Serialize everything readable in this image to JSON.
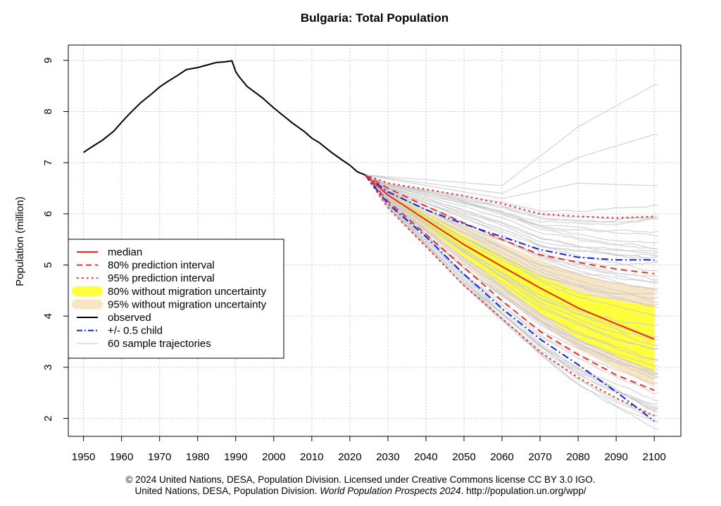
{
  "chart_data": {
    "type": "line",
    "title": "Bulgaria: Total Population",
    "xlabel": "",
    "ylabel": "Population (million)",
    "xlim": [
      1946,
      2107
    ],
    "ylim": [
      1.65,
      9.3
    ],
    "x_ticks": [
      1950,
      1960,
      1970,
      1980,
      1990,
      2000,
      2010,
      2020,
      2030,
      2040,
      2050,
      2060,
      2070,
      2080,
      2090,
      2100
    ],
    "y_ticks": [
      2,
      3,
      4,
      5,
      6,
      7,
      8,
      9
    ],
    "grid": true,
    "legend_position": "left",
    "legend": [
      {
        "label": "median",
        "key": "median"
      },
      {
        "label": "80% prediction interval",
        "key": "pi80"
      },
      {
        "label": "95% prediction interval",
        "key": "pi95"
      },
      {
        "label": "80% without migration uncertainty",
        "key": "band80"
      },
      {
        "label": "95% without migration uncertainty",
        "key": "band95"
      },
      {
        "label": "observed",
        "key": "observed"
      },
      {
        "label": "+/- 0.5 child",
        "key": "child"
      },
      {
        "label": "60 sample trajectories",
        "key": "trajectories"
      }
    ],
    "colors": {
      "median": "#e8322b",
      "pi80": "#e8322b",
      "pi95": "#e8322b",
      "band80": "#ffff3c",
      "band95": "#f8e5c4",
      "observed": "#000000",
      "child": "#1020e0",
      "trajectories": "#cccccc"
    },
    "observed": {
      "x": [
        1950,
        1952,
        1955,
        1958,
        1960,
        1962,
        1965,
        1968,
        1970,
        1972,
        1975,
        1977,
        1980,
        1983,
        1985,
        1987,
        1989,
        1990,
        1991,
        1993,
        1995,
        1997,
        2000,
        2002,
        2005,
        2008,
        2010,
        2012,
        2015,
        2018,
        2020,
        2022,
        2024
      ],
      "y": [
        7.2,
        7.3,
        7.44,
        7.62,
        7.79,
        7.95,
        8.17,
        8.35,
        8.48,
        8.58,
        8.72,
        8.82,
        8.86,
        8.92,
        8.96,
        8.97,
        8.99,
        8.78,
        8.67,
        8.49,
        8.38,
        8.27,
        8.07,
        7.95,
        7.77,
        7.61,
        7.48,
        7.39,
        7.21,
        7.05,
        6.95,
        6.82,
        6.76
      ]
    },
    "median": {
      "x": [
        2024,
        2030,
        2040,
        2050,
        2060,
        2070,
        2080,
        2090,
        2100
      ],
      "y": [
        6.76,
        6.37,
        5.88,
        5.4,
        4.97,
        4.55,
        4.16,
        3.85,
        3.55
      ]
    },
    "pi80": {
      "x": [
        2024,
        2030,
        2040,
        2050,
        2060,
        2070,
        2080,
        2090,
        2100
      ],
      "lower": [
        6.76,
        6.25,
        5.6,
        4.95,
        4.3,
        3.7,
        3.25,
        2.85,
        2.55
      ],
      "upper": [
        6.76,
        6.5,
        6.15,
        5.82,
        5.5,
        5.2,
        5.05,
        4.92,
        4.83
      ]
    },
    "pi95": {
      "x": [
        2024,
        2030,
        2040,
        2050,
        2060,
        2070,
        2080,
        2090,
        2100
      ],
      "lower": [
        6.76,
        6.12,
        5.36,
        4.6,
        3.95,
        3.3,
        2.8,
        2.4,
        2.05
      ],
      "upper": [
        6.76,
        6.6,
        6.48,
        6.35,
        6.2,
        6.0,
        5.95,
        5.92,
        5.95
      ]
    },
    "band80": {
      "x": [
        2024,
        2030,
        2040,
        2050,
        2060,
        2070,
        2080,
        2090,
        2100
      ],
      "lower": [
        6.76,
        6.32,
        5.74,
        5.17,
        4.62,
        4.07,
        3.57,
        3.22,
        2.92
      ],
      "upper": [
        6.76,
        6.42,
        6.0,
        5.58,
        5.18,
        4.8,
        4.48,
        4.3,
        4.2
      ]
    },
    "band95": {
      "x": [
        2024,
        2030,
        2040,
        2050,
        2060,
        2070,
        2080,
        2090,
        2100
      ],
      "lower": [
        6.76,
        6.26,
        5.64,
        5.02,
        4.43,
        3.87,
        3.35,
        2.97,
        2.62
      ],
      "upper": [
        6.76,
        6.47,
        6.1,
        5.75,
        5.42,
        5.1,
        4.83,
        4.65,
        4.55
      ]
    },
    "child_upper": {
      "x": [
        2024,
        2030,
        2040,
        2050,
        2060,
        2070,
        2080,
        2090,
        2100
      ],
      "y": [
        6.76,
        6.43,
        6.08,
        5.8,
        5.55,
        5.3,
        5.15,
        5.1,
        5.1
      ]
    },
    "child_lower": {
      "x": [
        2024,
        2030,
        2040,
        2050,
        2060,
        2070,
        2080,
        2090,
        2100
      ],
      "y": [
        6.76,
        6.2,
        5.55,
        4.82,
        4.15,
        3.55,
        3.05,
        2.52,
        1.95
      ]
    },
    "trajectory_count": 60
  },
  "caption": {
    "line1": "© 2024 United Nations, DESA, Population Division. Licensed under Creative Commons license CC BY 3.0 IGO.",
    "line2_prefix": "United Nations, DESA, Population Division.",
    "line2_italic": "World Population Prospects 2024",
    "line2_suffix": ". http://population.un.org/wpp/"
  }
}
